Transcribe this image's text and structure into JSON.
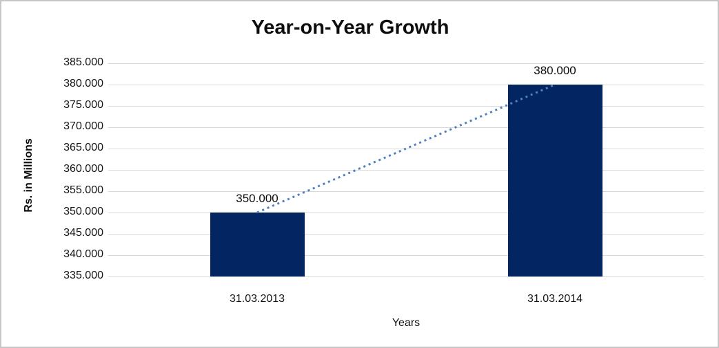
{
  "frame": {
    "background": "#ffffff",
    "border_color": "#c6c6c6"
  },
  "chart_data": {
    "type": "bar",
    "title": "Year-on-Year Growth",
    "xlabel": "Years",
    "ylabel": "Rs. in Millions",
    "categories": [
      "31.03.2013",
      "31.03.2014"
    ],
    "values": [
      350,
      380
    ],
    "value_labels": [
      "350.000",
      "380.000"
    ],
    "y_axis": {
      "min": 335,
      "max": 385,
      "step": 5,
      "tick_labels": [
        "385.000",
        "380.000",
        "375.000",
        "370.000",
        "365.000",
        "360.000",
        "355.000",
        "350.000",
        "345.000",
        "340.000",
        "335.000"
      ]
    },
    "grid": true,
    "legend": "none",
    "bar_color": "#032561",
    "gridline_color": "#d9d9d9",
    "text_color": "#0d0d0d",
    "trendline": {
      "type": "linear",
      "style": "dotted",
      "color": "#4f81bd"
    }
  }
}
